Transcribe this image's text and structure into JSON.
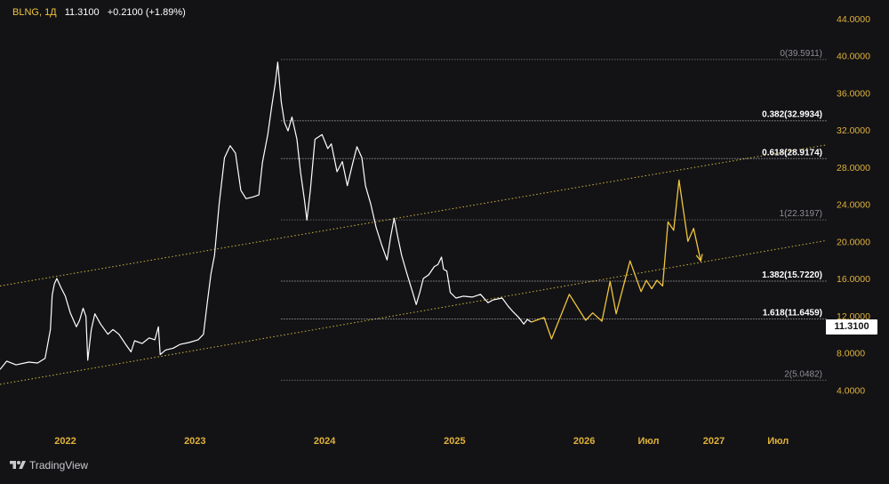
{
  "header": {
    "symbol": "BLNG, 1Д",
    "last": "11.3100",
    "change": "+0.2100 (+1.89%)"
  },
  "price_tag": "11.3100",
  "brand": {
    "name": "TradingView",
    "icon": "tradingview-logo-icon"
  },
  "colors": {
    "background": "#131316",
    "price_line": "#ffffff",
    "forecast_line": "#f0c43c",
    "axis_text": "#e0b23a",
    "fib_line": "#8c8c8c",
    "channel_line": "#d4b43a"
  },
  "chart_data": {
    "type": "line",
    "title": "",
    "xlabel": "",
    "ylabel": "",
    "ylim": [
      0,
      46
    ],
    "y_ticks": [
      "4.0000",
      "8.0000",
      "12.0000",
      "16.0000",
      "20.0000",
      "24.0000",
      "28.0000",
      "32.0000",
      "36.0000",
      "40.0000",
      "44.0000"
    ],
    "x_ticks": [
      "2022",
      "2023",
      "2024",
      "2025",
      "2026",
      "Июл",
      "2027",
      "Июл"
    ],
    "x_tick_dates": [
      "2022-01-01",
      "2023-01-01",
      "2024-01-01",
      "2025-01-01",
      "2026-01-01",
      "2026-07-01",
      "2027-01-01",
      "2027-07-01"
    ],
    "xlim": [
      "2021-07-01",
      "2027-11-15"
    ],
    "grid": false,
    "series": [
      {
        "role": "price",
        "points": [
          [
            "2021-07-01",
            6.2
          ],
          [
            "2021-07-20",
            7.1
          ],
          [
            "2021-08-15",
            6.7
          ],
          [
            "2021-09-20",
            7.0
          ],
          [
            "2021-10-15",
            6.9
          ],
          [
            "2021-11-05",
            7.4
          ],
          [
            "2021-11-20",
            10.5
          ],
          [
            "2021-11-25",
            14.2
          ],
          [
            "2021-12-01",
            15.4
          ],
          [
            "2021-12-08",
            16.0
          ],
          [
            "2021-12-20",
            15.0
          ],
          [
            "2022-01-01",
            14.1
          ],
          [
            "2022-01-15",
            12.3
          ],
          [
            "2022-02-01",
            10.8
          ],
          [
            "2022-02-10",
            11.5
          ],
          [
            "2022-02-20",
            12.8
          ],
          [
            "2022-02-28",
            11.9
          ],
          [
            "2022-03-05",
            7.2
          ],
          [
            "2022-03-15",
            10.5
          ],
          [
            "2022-03-25",
            12.2
          ],
          [
            "2022-04-10",
            11.1
          ],
          [
            "2022-05-01",
            10.0
          ],
          [
            "2022-05-15",
            10.5
          ],
          [
            "2022-06-01",
            10.0
          ],
          [
            "2022-06-20",
            8.9
          ],
          [
            "2022-07-05",
            8.1
          ],
          [
            "2022-07-15",
            9.3
          ],
          [
            "2022-08-05",
            9.0
          ],
          [
            "2022-08-25",
            9.6
          ],
          [
            "2022-09-10",
            9.4
          ],
          [
            "2022-09-20",
            10.8
          ],
          [
            "2022-09-25",
            7.8
          ],
          [
            "2022-10-10",
            8.3
          ],
          [
            "2022-11-01",
            8.5
          ],
          [
            "2022-11-20",
            8.9
          ],
          [
            "2022-12-15",
            9.1
          ],
          [
            "2023-01-10",
            9.4
          ],
          [
            "2023-01-25",
            10.0
          ],
          [
            "2023-02-05",
            13.5
          ],
          [
            "2023-02-15",
            16.5
          ],
          [
            "2023-02-25",
            18.5
          ],
          [
            "2023-03-10",
            24.0
          ],
          [
            "2023-03-25",
            29.0
          ],
          [
            "2023-04-10",
            30.3
          ],
          [
            "2023-04-25",
            29.5
          ],
          [
            "2023-05-10",
            25.5
          ],
          [
            "2023-05-25",
            24.6
          ],
          [
            "2023-06-15",
            24.8
          ],
          [
            "2023-06-30",
            25.0
          ],
          [
            "2023-07-10",
            28.5
          ],
          [
            "2023-07-25",
            31.5
          ],
          [
            "2023-08-05",
            34.5
          ],
          [
            "2023-08-15",
            37.0
          ],
          [
            "2023-08-22",
            39.3
          ],
          [
            "2023-09-01",
            35.0
          ],
          [
            "2023-09-10",
            32.8
          ],
          [
            "2023-09-20",
            31.9
          ],
          [
            "2023-10-01",
            33.4
          ],
          [
            "2023-10-15",
            31.0
          ],
          [
            "2023-10-25",
            27.5
          ],
          [
            "2023-11-05",
            24.5
          ],
          [
            "2023-11-12",
            22.3
          ],
          [
            "2023-11-22",
            25.5
          ],
          [
            "2023-12-05",
            31.0
          ],
          [
            "2023-12-25",
            31.5
          ],
          [
            "2024-01-10",
            30.0
          ],
          [
            "2024-01-20",
            30.5
          ],
          [
            "2024-02-05",
            27.5
          ],
          [
            "2024-02-20",
            28.6
          ],
          [
            "2024-03-05",
            26.0
          ],
          [
            "2024-03-20",
            28.4
          ],
          [
            "2024-04-01",
            30.2
          ],
          [
            "2024-04-15",
            29.0
          ],
          [
            "2024-04-25",
            26.0
          ],
          [
            "2024-05-10",
            24.0
          ],
          [
            "2024-05-25",
            21.5
          ],
          [
            "2024-06-10",
            19.6
          ],
          [
            "2024-06-25",
            18.0
          ],
          [
            "2024-07-05",
            20.5
          ],
          [
            "2024-07-15",
            22.5
          ],
          [
            "2024-07-25",
            20.5
          ],
          [
            "2024-08-05",
            18.5
          ],
          [
            "2024-08-20",
            16.5
          ],
          [
            "2024-09-05",
            14.5
          ],
          [
            "2024-09-15",
            13.2
          ],
          [
            "2024-09-25",
            14.5
          ],
          [
            "2024-10-05",
            16.0
          ],
          [
            "2024-10-20",
            16.4
          ],
          [
            "2024-11-05",
            17.3
          ],
          [
            "2024-11-15",
            17.5
          ],
          [
            "2024-11-25",
            18.3
          ],
          [
            "2024-12-01",
            17.0
          ],
          [
            "2024-12-10",
            16.8
          ],
          [
            "2024-12-20",
            14.5
          ],
          [
            "2025-01-05",
            13.9
          ],
          [
            "2025-01-25",
            14.1
          ],
          [
            "2025-02-20",
            14.0
          ],
          [
            "2025-03-15",
            14.3
          ],
          [
            "2025-04-05",
            13.4
          ],
          [
            "2025-04-20",
            13.7
          ],
          [
            "2025-05-15",
            13.9
          ],
          [
            "2025-06-01",
            13.0
          ],
          [
            "2025-06-15",
            12.4
          ],
          [
            "2025-07-01",
            11.8
          ],
          [
            "2025-07-15",
            11.1
          ],
          [
            "2025-07-25",
            11.6
          ],
          [
            "2025-08-05",
            11.31
          ]
        ]
      },
      {
        "role": "forecast",
        "points": [
          [
            "2025-08-05",
            11.31
          ],
          [
            "2025-09-10",
            11.8
          ],
          [
            "2025-10-01",
            9.5
          ],
          [
            "2025-11-20",
            14.3
          ],
          [
            "2026-01-05",
            11.5
          ],
          [
            "2026-01-25",
            12.3
          ],
          [
            "2026-02-20",
            11.4
          ],
          [
            "2026-03-15",
            15.7
          ],
          [
            "2026-04-01",
            12.2
          ],
          [
            "2026-05-10",
            17.9
          ],
          [
            "2026-06-10",
            14.6
          ],
          [
            "2026-06-25",
            15.8
          ],
          [
            "2026-07-10",
            14.9
          ],
          [
            "2026-07-25",
            15.8
          ],
          [
            "2026-08-10",
            15.2
          ],
          [
            "2026-08-25",
            22.1
          ],
          [
            "2026-09-10",
            21.2
          ],
          [
            "2026-09-25",
            26.6
          ],
          [
            "2026-10-20",
            20.0
          ],
          [
            "2026-11-05",
            21.4
          ],
          [
            "2026-11-25",
            17.9
          ]
        ]
      }
    ],
    "channel_lines": [
      {
        "from": [
          "2021-07-01",
          15.2
        ],
        "to": [
          "2027-11-15",
          30.4
        ]
      },
      {
        "from": [
          "2021-07-01",
          4.6
        ],
        "to": [
          "2027-11-15",
          20.1
        ]
      }
    ],
    "fib_levels": [
      {
        "label": "0(39.5911)",
        "value": 39.5911,
        "emphasis": false
      },
      {
        "label": "0.382(32.9934)",
        "value": 32.9934,
        "emphasis": true
      },
      {
        "label": "0.618(28.9174)",
        "value": 28.9174,
        "emphasis": true
      },
      {
        "label": "1(22.3197)",
        "value": 22.3197,
        "emphasis": false
      },
      {
        "label": "1.382(15.7220)",
        "value": 15.722,
        "emphasis": true
      },
      {
        "label": "1.618(11.6459)",
        "value": 11.6459,
        "emphasis": true
      },
      {
        "label": "2(5.0482)",
        "value": 5.0482,
        "emphasis": false
      }
    ],
    "fib_start_date": "2023-09-01",
    "last_price": 11.31
  }
}
